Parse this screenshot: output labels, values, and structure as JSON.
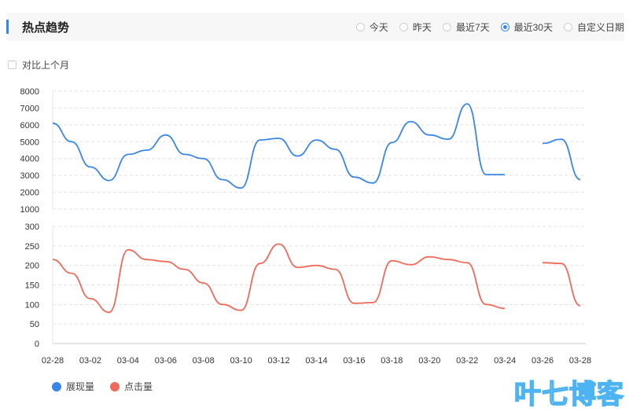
{
  "header": {
    "title": "热点趋势",
    "ranges": [
      {
        "label": "今天",
        "checked": false
      },
      {
        "label": "昨天",
        "checked": false
      },
      {
        "label": "最近7天",
        "checked": false
      },
      {
        "label": "最近30天",
        "checked": true
      },
      {
        "label": "自定义日期",
        "checked": false
      }
    ]
  },
  "compare_label": "对比上个月",
  "watermark": "叶七博客",
  "chart_data": {
    "type": "line",
    "x": [
      "02-28",
      "03-01",
      "03-02",
      "03-03",
      "03-04",
      "03-05",
      "03-06",
      "03-07",
      "03-08",
      "03-09",
      "03-10",
      "03-11",
      "03-12",
      "03-13",
      "03-14",
      "03-15",
      "03-16",
      "03-17",
      "03-18",
      "03-19",
      "03-20",
      "03-21",
      "03-22",
      "03-23",
      "03-24",
      "03-25",
      "03-26",
      "03-27",
      "03-28"
    ],
    "x_tick_labels": [
      "02-28",
      "03-02",
      "03-04",
      "03-06",
      "03-08",
      "03-10",
      "03-12",
      "03-14",
      "03-16",
      "03-18",
      "03-20",
      "03-22",
      "03-24",
      "03-26",
      "03-28"
    ],
    "series": [
      {
        "name": "展现量",
        "color": "#3a86e8",
        "values": [
          6100,
          5000,
          3500,
          2700,
          4250,
          4500,
          5400,
          4250,
          4000,
          2750,
          2250,
          5100,
          5200,
          4150,
          5100,
          4550,
          2900,
          2550,
          4950,
          6200,
          5400,
          5150,
          7250,
          3050,
          3050,
          null,
          4900,
          5150,
          2750
        ],
        "ylim": [
          1000,
          8000
        ],
        "yticks": [
          1000,
          2000,
          3000,
          4000,
          5000,
          6000,
          7000,
          8000
        ]
      },
      {
        "name": "点击量",
        "color": "#f06a5a",
        "values": [
          215,
          180,
          115,
          80,
          240,
          215,
          210,
          190,
          155,
          100,
          85,
          205,
          255,
          195,
          200,
          190,
          103,
          105,
          212,
          202,
          222,
          215,
          207,
          100,
          90,
          null,
          207,
          205,
          97
        ],
        "ylim": [
          0,
          300
        ],
        "yticks": [
          0,
          50,
          100,
          150,
          200,
          250,
          300
        ]
      }
    ],
    "grid": true,
    "legend": "bottom-left"
  }
}
